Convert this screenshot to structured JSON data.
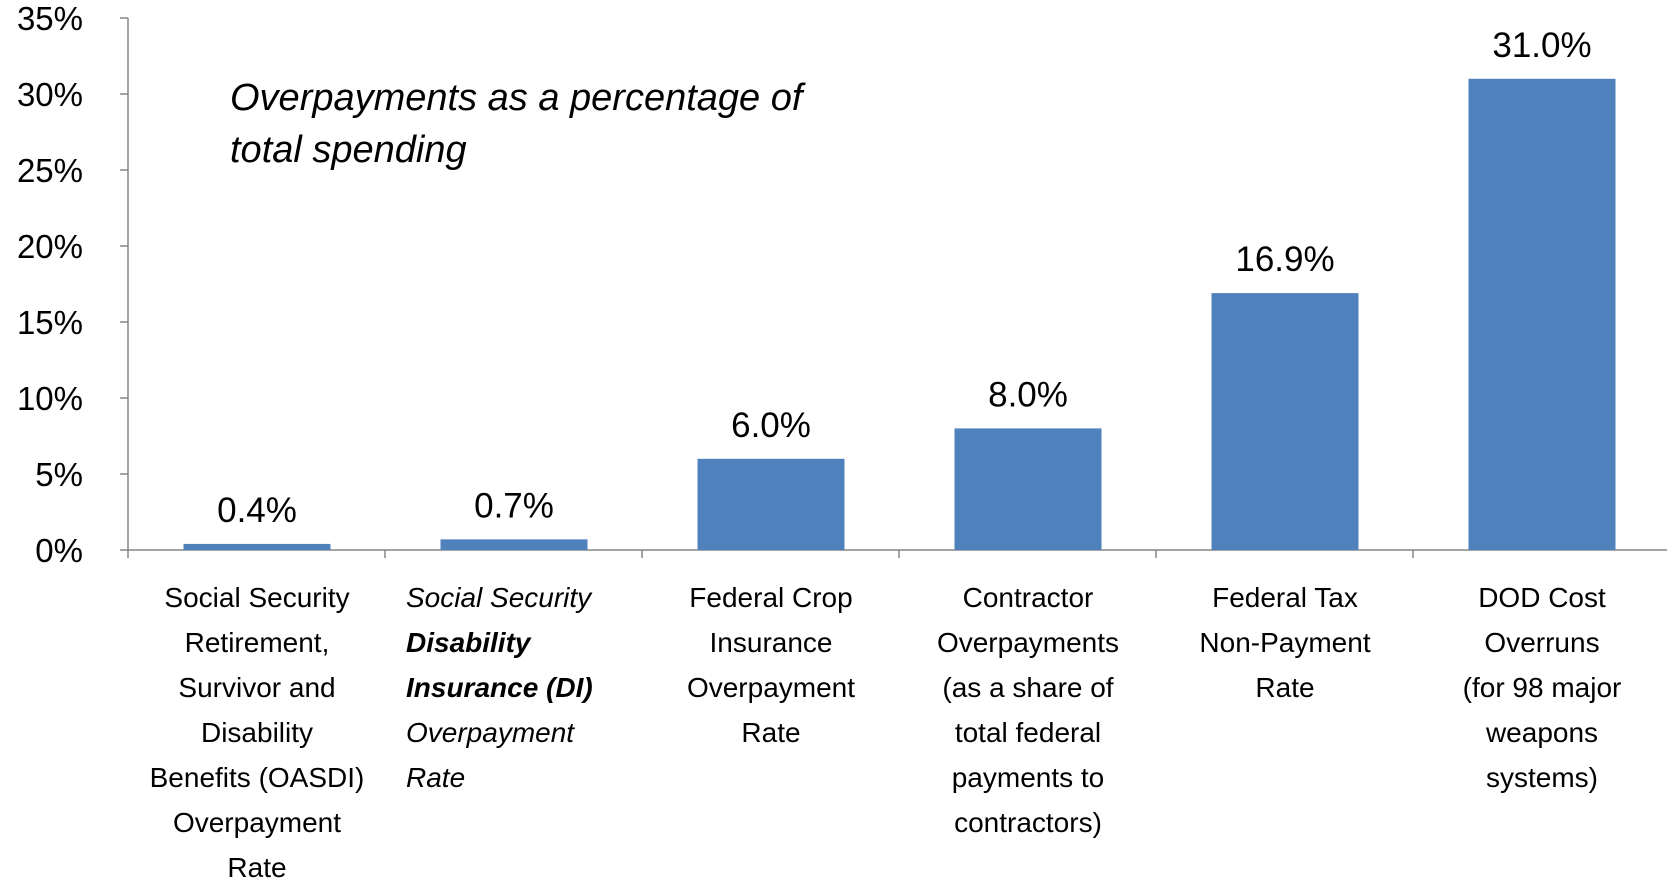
{
  "chart_data": {
    "type": "bar",
    "annotation": "Overpayments as a percentage of total spending",
    "categories": [
      {
        "lines": [
          {
            "text": "Social Security"
          },
          {
            "text": "Retirement,"
          },
          {
            "text": "Survivor and"
          },
          {
            "text": "Disability"
          },
          {
            "text": "Benefits (OASDI)"
          },
          {
            "text": "Overpayment"
          },
          {
            "text": "Rate"
          }
        ],
        "align": "center",
        "italic": false
      },
      {
        "lines": [
          {
            "text": "Social Security"
          },
          {
            "text": "Disability",
            "bold": true
          },
          {
            "text": "Insurance (DI)",
            "bold": true
          },
          {
            "text": "Overpayment"
          },
          {
            "text": "Rate"
          }
        ],
        "align": "left",
        "italic": true
      },
      {
        "lines": [
          {
            "text": "Federal Crop"
          },
          {
            "text": "Insurance"
          },
          {
            "text": "Overpayment"
          },
          {
            "text": "Rate"
          }
        ],
        "align": "center",
        "italic": false
      },
      {
        "lines": [
          {
            "text": "Contractor"
          },
          {
            "text": "Overpayments"
          },
          {
            "text": "(as a share of"
          },
          {
            "text": "total federal"
          },
          {
            "text": "payments to"
          },
          {
            "text": "contractors)"
          }
        ],
        "align": "center",
        "italic": false
      },
      {
        "lines": [
          {
            "text": "Federal Tax"
          },
          {
            "text": "Non-Payment"
          },
          {
            "text": "Rate"
          }
        ],
        "align": "center",
        "italic": false
      },
      {
        "lines": [
          {
            "text": "DOD Cost"
          },
          {
            "text": "Overruns"
          },
          {
            "text": "(for 98 major"
          },
          {
            "text": "weapons"
          },
          {
            "text": "systems)"
          }
        ],
        "align": "center",
        "italic": false
      }
    ],
    "values": [
      0.4,
      0.7,
      6.0,
      8.0,
      16.9,
      31.0
    ],
    "data_labels": [
      "0.4%",
      "0.7%",
      "6.0%",
      "8.0%",
      "16.9%",
      "31.0%"
    ],
    "ylim": [
      0,
      35
    ],
    "yticks": [
      {
        "value": 0,
        "label": "0%"
      },
      {
        "value": 5,
        "label": "5%"
      },
      {
        "value": 10,
        "label": "10%"
      },
      {
        "value": 15,
        "label": "15%"
      },
      {
        "value": 20,
        "label": "20%"
      },
      {
        "value": 25,
        "label": "25%"
      },
      {
        "value": 30,
        "label": "30%"
      },
      {
        "value": 35,
        "label": "35%"
      }
    ],
    "grid": false,
    "bar_color": "#4F81BD",
    "axis_color": "#868686"
  }
}
